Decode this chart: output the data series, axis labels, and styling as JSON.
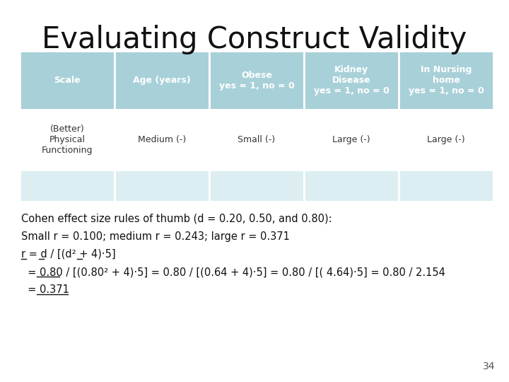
{
  "title": "Evaluating Construct Validity",
  "bg_color": "#ffffff",
  "table_header_bg": "#a8d0d8",
  "table_row2_bg": "#ddeef2",
  "header_text_color": "#ffffff",
  "body_text_color": "#333333",
  "col_headers": [
    "Scale",
    "Age (years)",
    "Obese\nyes = 1, no = 0",
    "Kidney\nDisease\nyes = 1, no = 0",
    "In Nursing\nhome\nyes = 1, no = 0"
  ],
  "row1_data": [
    "(Better)\nPhysical\nFunctioning",
    "Medium (-)",
    "Small (-)",
    "Large (-)",
    "Large (-)"
  ],
  "footer_text_color": "#111111",
  "page_number": "34",
  "cohen_line": "Cohen effect size rules of thumb (d = 0.20, 0.50, and 0.80):",
  "small_r_line": "Small r = 0.100; medium r = 0.243; large r = 0.371"
}
